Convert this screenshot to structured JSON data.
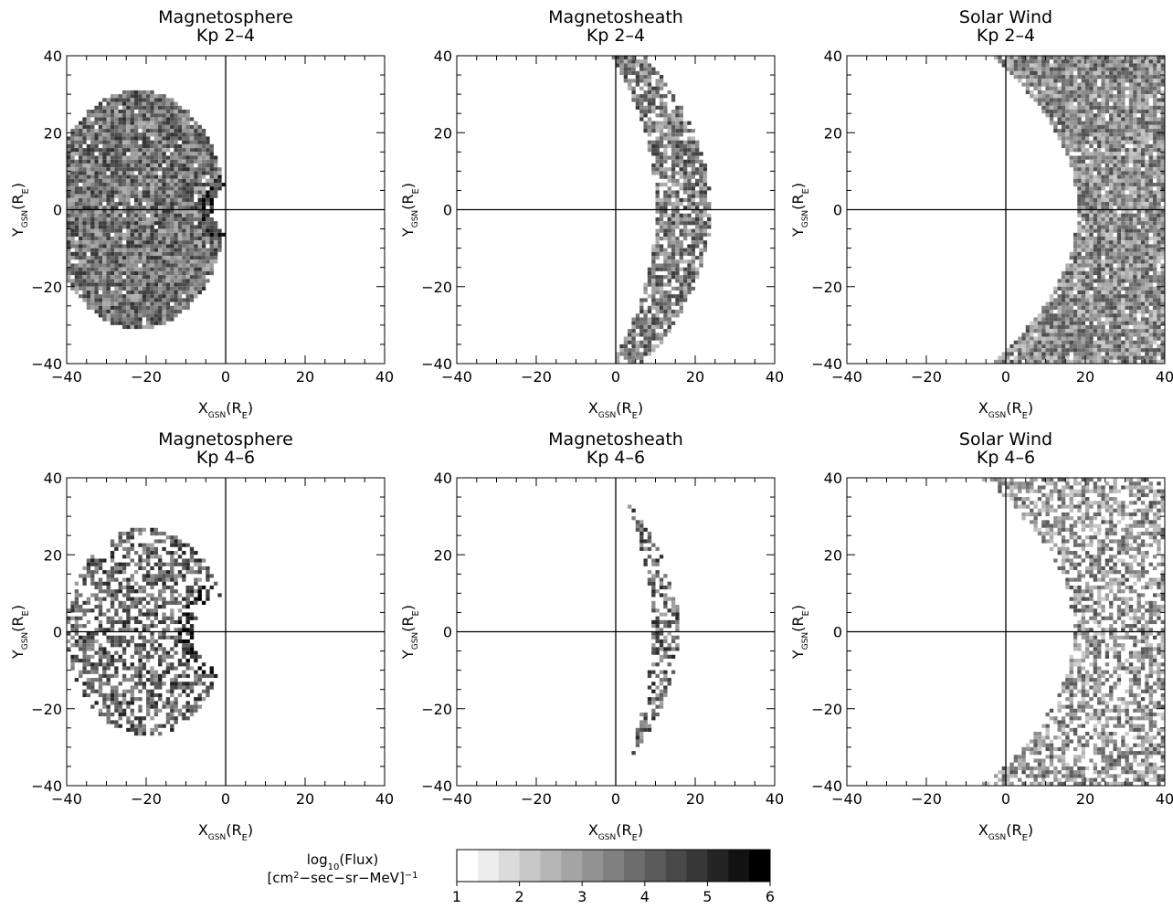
{
  "chart_data": [
    {
      "type": "heatmap",
      "title": "Magnetosphere",
      "subtitle": "Kp 2–4",
      "xlabel": "X",
      "ylabel": "Y",
      "axis_subscript": "GSN",
      "axis_unit": "(R",
      "axis_unit_sub": "E",
      "axis_unit_close": ")",
      "xlim": [
        -40,
        40
      ],
      "ylim": [
        -40,
        40
      ],
      "xticks": [
        "−40",
        "−20",
        "0",
        "20",
        "40"
      ],
      "yticks": [
        "40",
        "20",
        "0",
        "−20",
        "−40"
      ],
      "region": {
        "shape": "disk_with_hole",
        "outer_center": [
          -22,
          0
        ],
        "outer_radius": [
          22,
          31
        ],
        "hole_center": [
          6,
          0
        ],
        "hole_radius": 9,
        "ring_dark_width": 3
      },
      "mean_level": 3.8,
      "coverage": 0.97
    },
    {
      "type": "heatmap",
      "title": "Magnetosheath",
      "subtitle": "Kp 2–4",
      "xlabel": "X",
      "ylabel": "Y",
      "axis_subscript": "GSN",
      "axis_unit": "(R",
      "axis_unit_sub": "E",
      "axis_unit_close": ")",
      "xlim": [
        -40,
        40
      ],
      "ylim": [
        -40,
        40
      ],
      "xticks": [
        "−40",
        "−20",
        "0",
        "20",
        "40"
      ],
      "yticks": [
        "40",
        "20",
        "0",
        "−20",
        "−40"
      ],
      "region": {
        "shape": "crescent",
        "inner_nose": 10,
        "inner_flare": 0.0068,
        "outer_nose": 24,
        "outer_flare": 0.0105
      },
      "mean_level": 3.6,
      "coverage": 0.8
    },
    {
      "type": "heatmap",
      "title": "Solar Wind",
      "subtitle": "Kp 2–4",
      "xlabel": "X",
      "ylabel": "Y",
      "axis_subscript": "GSN",
      "axis_unit": "(R",
      "axis_unit_sub": "E",
      "axis_unit_close": ")",
      "xlim": [
        -40,
        40
      ],
      "ylim": [
        -40,
        40
      ],
      "xticks": [
        "−40",
        "−20",
        "0",
        "20",
        "40"
      ],
      "yticks": [
        "40",
        "20",
        "0",
        "−20",
        "−40"
      ],
      "region": {
        "shape": "crescent",
        "inner_nose": 18,
        "inner_flare": 0.0135,
        "outer_nose": 40,
        "outer_flare": 0.0001
      },
      "mean_level": 3.3,
      "coverage": 0.95
    },
    {
      "type": "heatmap",
      "title": "Magnetosphere",
      "subtitle": "Kp 4–6",
      "xlabel": "X",
      "ylabel": "Y",
      "axis_subscript": "GSN",
      "axis_unit": "(R",
      "axis_unit_sub": "E",
      "axis_unit_close": ")",
      "xlim": [
        -40,
        40
      ],
      "ylim": [
        -40,
        40
      ],
      "xticks": [
        "−40",
        "−20",
        "0",
        "20",
        "40"
      ],
      "yticks": [
        "40",
        "20",
        "0",
        "−20",
        "−40"
      ],
      "region": {
        "shape": "disk_with_hole",
        "outer_center": [
          -20,
          0
        ],
        "outer_radius": [
          20,
          27
        ],
        "hole_center": [
          2,
          0
        ],
        "hole_radius": 10,
        "ring_dark_width": 4
      },
      "mean_level": 4.1,
      "coverage": 0.55
    },
    {
      "type": "heatmap",
      "title": "Magnetosheath",
      "subtitle": "Kp 4–6",
      "xlabel": "X",
      "ylabel": "Y",
      "axis_subscript": "GSN",
      "axis_unit": "(R",
      "axis_unit_sub": "E",
      "axis_unit_close": ")",
      "xlim": [
        -40,
        40
      ],
      "ylim": [
        -40,
        40
      ],
      "xticks": [
        "−40",
        "−20",
        "0",
        "20",
        "40"
      ],
      "yticks": [
        "40",
        "20",
        "0",
        "−20",
        "−40"
      ],
      "region": {
        "shape": "crescent",
        "inner_nose": 9,
        "inner_flare": 0.0055,
        "outer_nose": 16,
        "outer_flare": 0.0115
      },
      "mean_level": 4.0,
      "coverage": 0.55
    },
    {
      "type": "heatmap",
      "title": "Solar Wind",
      "subtitle": "Kp 4–6",
      "xlabel": "X",
      "ylabel": "Y",
      "axis_subscript": "GSN",
      "axis_unit": "(R",
      "axis_unit_sub": "E",
      "axis_unit_close": ")",
      "xlim": [
        -40,
        40
      ],
      "ylim": [
        -40,
        40
      ],
      "xticks": [
        "−40",
        "−20",
        "0",
        "20",
        "40"
      ],
      "yticks": [
        "40",
        "20",
        "0",
        "−20",
        "−40"
      ],
      "region": {
        "shape": "crescent",
        "inner_nose": 17,
        "inner_flare": 0.0145,
        "outer_nose": 40,
        "outer_flare": 0.0001
      },
      "mean_level": 3.2,
      "coverage": 0.6
    }
  ],
  "colorbar": {
    "label_line1": "log",
    "label_line1_sub": "10",
    "label_line1_rest": "(Flux)",
    "label_line2_open": "[cm",
    "label_line2_sup": "2",
    "label_line2_mid": "−sec−sr−MeV]",
    "label_line2_exp": "−1",
    "min": 1,
    "max": 6,
    "steps": 15,
    "ticks": [
      "1",
      "2",
      "3",
      "4",
      "5",
      "6"
    ],
    "color_low": "#ffffff",
    "color_high": "#000000"
  }
}
